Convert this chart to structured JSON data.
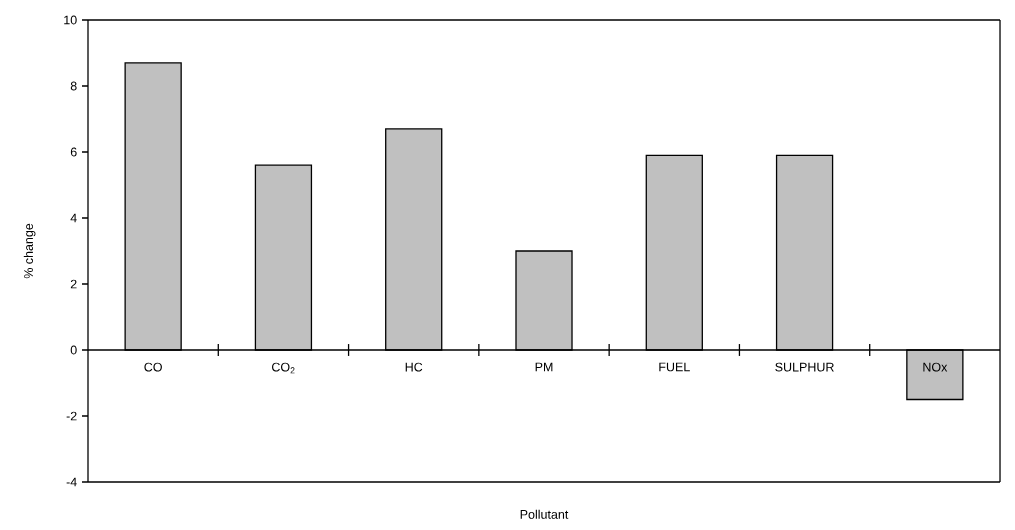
{
  "chart_data": {
    "type": "bar",
    "xlabel": "Pollutant",
    "ylabel": "% change",
    "categories": [
      "CO",
      "CO$_{2}$",
      "HC",
      "PM",
      "FUEL",
      "SULPHUR",
      "NOx"
    ],
    "values": [
      8.7,
      5.6,
      6.7,
      3.0,
      5.9,
      5.9,
      -1.5
    ],
    "color": "#c0c0c0",
    "ylim": [
      -4,
      10
    ],
    "yticks": [
      -4,
      -2,
      0,
      2,
      4,
      6,
      8,
      10
    ]
  }
}
